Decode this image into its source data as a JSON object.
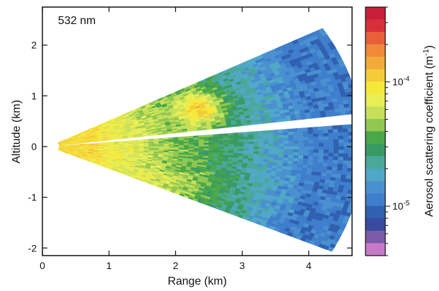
{
  "chart_data": {
    "type": "heatmap",
    "panel_label": "532 nm",
    "xlabel": "Range (km)",
    "ylabel": "Altitude (km)",
    "xlim": [
      0,
      4.65
    ],
    "ylim": [
      -2.15,
      2.75
    ],
    "x_ticks": [
      "0",
      "1",
      "2",
      "3",
      "4"
    ],
    "y_ticks": [
      "-2",
      "-1",
      "0",
      "1",
      "2"
    ],
    "colorbar": {
      "label": "Aerosol scattering coefficient (m",
      "label_sup": "-1",
      "label_end": ")",
      "scale": "log",
      "range": [
        4e-06,
        0.0004
      ],
      "tick_labels": [
        {
          "base": "10",
          "exp": "-4",
          "value": 0.0001
        },
        {
          "base": "10",
          "exp": "-5",
          "value": 1e-05
        }
      ],
      "colors_top_to_bottom": [
        "#c81e3a",
        "#d8303a",
        "#e8603a",
        "#f08a38",
        "#f2aa3a",
        "#f4cc3a",
        "#f6e83a",
        "#e7ee56",
        "#c6e05a",
        "#90c850",
        "#4aa84a",
        "#3a9a64",
        "#4aa89a",
        "#50a8c8",
        "#4a90d0",
        "#3e7ecc",
        "#3060b0",
        "#3a4aa0",
        "#7e5aa8",
        "#c87ac8"
      ]
    },
    "scan": {
      "origin": [
        0.1,
        0.0
      ],
      "upper_sector_deg": [
        8,
        29
      ],
      "lower_sector_deg": [
        -26,
        5
      ],
      "max_range_km": 4.7,
      "plume": {
        "x": 2.4,
        "y": 0.75
      },
      "log10_coefficient_near": -4.0,
      "log10_coefficient_far": -4.95
    }
  }
}
